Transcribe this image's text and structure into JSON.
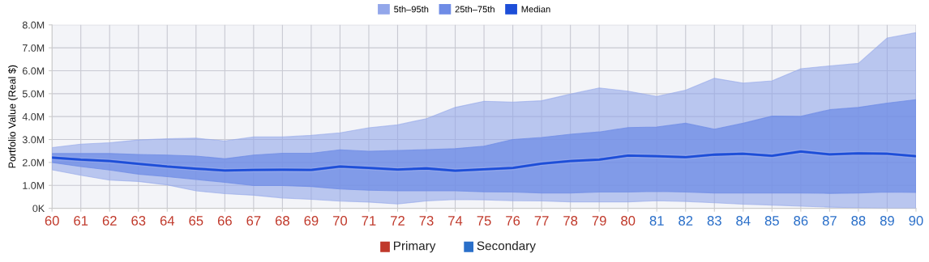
{
  "chart_data": {
    "type": "line",
    "ylabel": "Portfolio Value (Real $)",
    "categories": [
      "60",
      "61",
      "62",
      "63",
      "64",
      "65",
      "66",
      "67",
      "68",
      "69",
      "70",
      "71",
      "72",
      "73",
      "74",
      "75",
      "76",
      "77",
      "78",
      "79",
      "80",
      "81",
      "82",
      "83",
      "84",
      "85",
      "86",
      "87",
      "88",
      "89",
      "90"
    ],
    "series": [
      {
        "name": "5th–95th",
        "color": "#93a7ea",
        "values": [
          2.21,
          2.12,
          2.06,
          1.94,
          1.82,
          1.73,
          1.65,
          1.67,
          1.68,
          1.67,
          1.82,
          1.76,
          1.69,
          1.74,
          1.64,
          1.7,
          1.76,
          1.95,
          2.06,
          2.12,
          2.3,
          2.27,
          2.23,
          2.34,
          2.38,
          2.29,
          2.48,
          2.35,
          2.4,
          2.38,
          2.27
        ],
        "lower": [
          1.68,
          1.44,
          1.23,
          1.17,
          1.02,
          0.76,
          0.64,
          0.57,
          0.45,
          0.39,
          0.31,
          0.27,
          0.19,
          0.32,
          0.38,
          0.37,
          0.33,
          0.32,
          0.28,
          0.28,
          0.28,
          0.33,
          0.3,
          0.24,
          0.18,
          0.14,
          0.09,
          0.05,
          0.02,
          0.0,
          0.0
        ],
        "upper": [
          2.65,
          2.8,
          2.86,
          2.98,
          3.03,
          3.06,
          2.94,
          3.11,
          3.11,
          3.18,
          3.29,
          3.51,
          3.64,
          3.91,
          4.4,
          4.67,
          4.63,
          4.69,
          4.98,
          5.25,
          5.11,
          4.88,
          5.15,
          5.67,
          5.46,
          5.56,
          6.09,
          6.21,
          6.32,
          7.43,
          7.66
        ]
      },
      {
        "name": "25th–75th",
        "color": "#6f8ce6",
        "values": [
          2.21,
          2.12,
          2.06,
          1.94,
          1.82,
          1.73,
          1.65,
          1.67,
          1.68,
          1.67,
          1.82,
          1.76,
          1.69,
          1.74,
          1.64,
          1.7,
          1.76,
          1.95,
          2.06,
          2.12,
          2.3,
          2.27,
          2.23,
          2.34,
          2.38,
          2.29,
          2.48,
          2.35,
          2.4,
          2.38,
          2.27
        ],
        "lower": [
          2.0,
          1.82,
          1.67,
          1.49,
          1.38,
          1.26,
          1.13,
          0.99,
          0.99,
          0.95,
          0.84,
          0.79,
          0.76,
          0.76,
          0.76,
          0.72,
          0.71,
          0.67,
          0.67,
          0.71,
          0.71,
          0.74,
          0.71,
          0.67,
          0.67,
          0.67,
          0.67,
          0.65,
          0.67,
          0.71,
          0.69
        ],
        "upper": [
          2.39,
          2.39,
          2.39,
          2.35,
          2.32,
          2.28,
          2.16,
          2.32,
          2.4,
          2.4,
          2.55,
          2.49,
          2.52,
          2.56,
          2.6,
          2.71,
          3.0,
          3.09,
          3.23,
          3.33,
          3.52,
          3.55,
          3.71,
          3.45,
          3.71,
          4.02,
          4.01,
          4.3,
          4.4,
          4.59,
          4.74
        ]
      },
      {
        "name": "Median",
        "color": "#1d4ed8",
        "values": [
          2.21,
          2.12,
          2.06,
          1.94,
          1.82,
          1.73,
          1.65,
          1.67,
          1.68,
          1.67,
          1.82,
          1.76,
          1.69,
          1.74,
          1.64,
          1.7,
          1.76,
          1.95,
          2.06,
          2.12,
          2.3,
          2.27,
          2.23,
          2.34,
          2.38,
          2.29,
          2.48,
          2.35,
          2.4,
          2.38,
          2.27
        ]
      }
    ],
    "annotations": [
      "Primary",
      "Secondary"
    ],
    "ylim": [
      0,
      8
    ],
    "yticks": [
      {
        "value": 0,
        "label": "0K"
      },
      {
        "value": 1,
        "label": "1.0M"
      },
      {
        "value": 2,
        "label": "2.0M"
      },
      {
        "value": 3,
        "label": "3.0M"
      },
      {
        "value": 4,
        "label": "4.0M"
      },
      {
        "value": 5,
        "label": "5.0M"
      },
      {
        "value": 6,
        "label": "6.0M"
      },
      {
        "value": 7,
        "label": "7.0M"
      },
      {
        "value": 8,
        "label": "8.0M"
      }
    ],
    "grid": true,
    "legend": "top"
  }
}
